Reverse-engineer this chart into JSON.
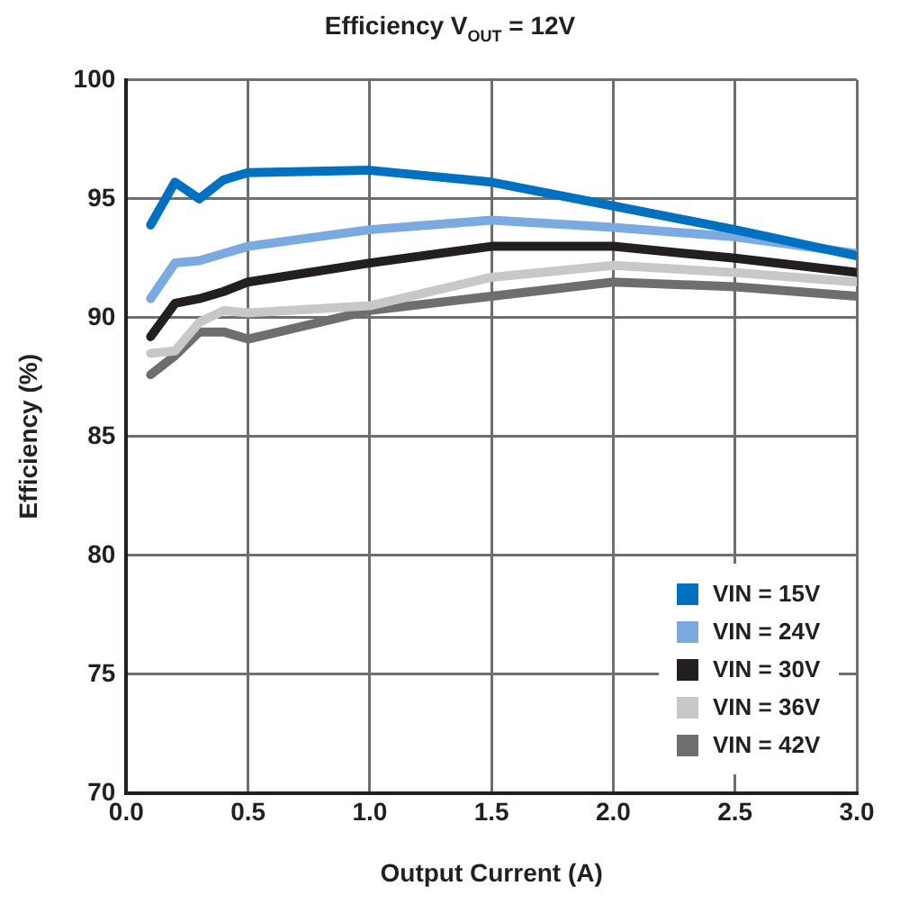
{
  "chart_data": {
    "type": "line",
    "title": "Efficiency V$_{OUT}$ = 12V",
    "xlabel": "Output Current (A)",
    "ylabel": "Efficiency (%)",
    "x": [
      0.1,
      0.2,
      0.3,
      0.4,
      0.5,
      1.0,
      1.5,
      2.0,
      2.5,
      3.0
    ],
    "series": [
      {
        "name": "VIN = 15V",
        "color": "#0070c0",
        "values": [
          93.9,
          95.7,
          95.0,
          95.8,
          96.1,
          96.2,
          95.7,
          94.7,
          93.7,
          92.6
        ]
      },
      {
        "name": "VIN = 24V",
        "color": "#7aaadf",
        "values": [
          90.8,
          92.3,
          92.4,
          92.7,
          93.0,
          93.7,
          94.1,
          93.8,
          93.4,
          92.7
        ]
      },
      {
        "name": "VIN = 30V",
        "color": "#231f20",
        "values": [
          89.2,
          90.6,
          90.8,
          91.1,
          91.5,
          92.3,
          93.0,
          93.0,
          92.5,
          91.9
        ]
      },
      {
        "name": "VIN = 36V",
        "color": "#c8c8c8",
        "values": [
          88.5,
          88.6,
          89.8,
          90.3,
          90.2,
          90.5,
          91.7,
          92.2,
          91.9,
          91.5
        ]
      },
      {
        "name": "VIN = 42V",
        "color": "#6d6e70",
        "values": [
          87.6,
          88.4,
          89.4,
          89.4,
          89.1,
          90.3,
          90.9,
          91.5,
          91.3,
          90.9
        ]
      }
    ],
    "xlim": [
      0,
      3
    ],
    "xticks": [
      {
        "value": 0,
        "label": "0.0"
      },
      {
        "value": 0.5,
        "label": "0.5"
      },
      {
        "value": 1,
        "label": "1.0"
      },
      {
        "value": 1.5,
        "label": "1.5"
      },
      {
        "value": 2,
        "label": "2.0"
      },
      {
        "value": 2.5,
        "label": "2.5"
      },
      {
        "value": 3,
        "label": "3.0"
      }
    ],
    "ylim": [
      70,
      100
    ],
    "yticks": [
      70,
      75,
      80,
      85,
      90,
      95,
      100
    ],
    "grid": true,
    "legend": "bottom right",
    "marker": "none",
    "line_style": "solid"
  }
}
